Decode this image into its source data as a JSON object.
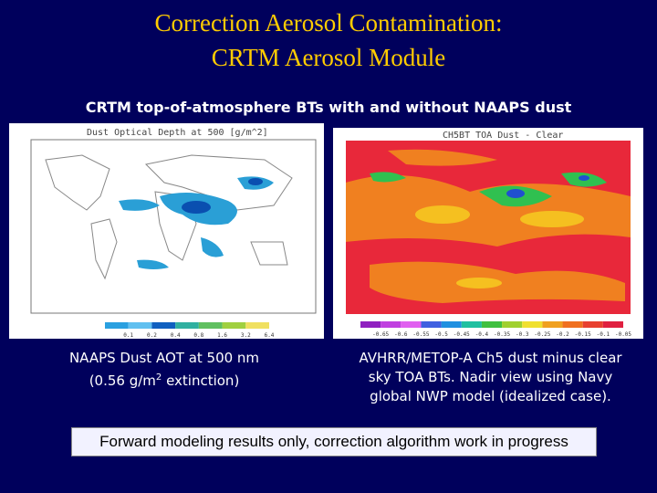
{
  "header": {
    "title_line1": "Correction Aerosol Contamination:",
    "title_line2": "CRTM Aerosol Module"
  },
  "subtitle": "CRTM top-of-atmosphere BTs with and without NAAPS dust",
  "panels": [
    {
      "map_title": "Dust Optical Depth at 500 [g/m^2]",
      "colorbar_labels": [
        "0.1",
        "0.2",
        "0.4",
        "0.8",
        "1.6",
        "3.2",
        "6.4"
      ],
      "caption": {
        "line1": "NAAPS Dust AOT at 500 nm",
        "line2_before": "(0.56 g/m",
        "line2_sup": "2",
        "line2_after": " extinction)"
      }
    },
    {
      "map_title": "CH5BT TOA Dust - Clear",
      "colorbar_labels": [
        "-0.65",
        "-0.6",
        "-0.55",
        "-0.5",
        "-0.45",
        "-0.4",
        "-0.35",
        "-0.3",
        "-0.25",
        "-0.2",
        "-0.15",
        "-0.1",
        "-0.05"
      ],
      "caption": {
        "line1": "AVHRR/METOP-A Ch5 dust minus clear",
        "line2": "sky TOA BTs.  Nadir view using Navy",
        "line3": "global NWP model (idealized case)."
      }
    }
  ],
  "footer": "Forward modeling results only, correction algorithm work in progress"
}
